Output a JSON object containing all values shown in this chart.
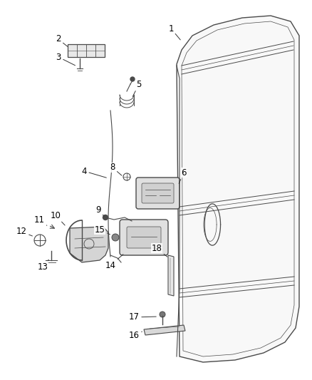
{
  "bg_color": "#ffffff",
  "line_color": "#4a4a4a",
  "label_color": "#000000",
  "figsize": [
    4.38,
    5.33
  ],
  "dpi": 100
}
